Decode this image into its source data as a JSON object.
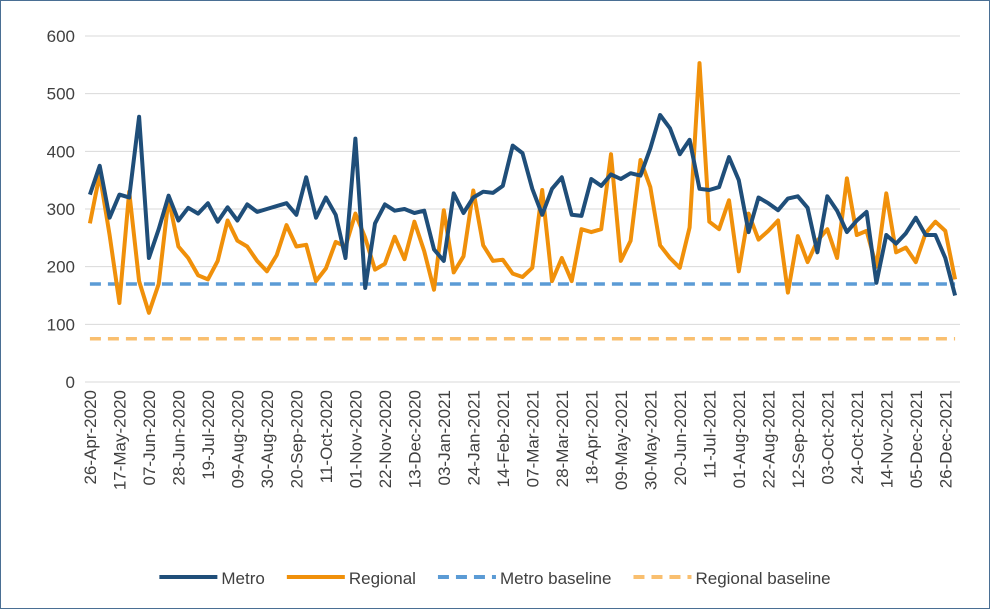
{
  "chart_data": {
    "type": "line",
    "categories": [
      "26-Apr-2020",
      null,
      null,
      "17-May-2020",
      null,
      null,
      "07-Jun-2020",
      null,
      null,
      "28-Jun-2020",
      null,
      null,
      "19-Jul-2020",
      null,
      null,
      "09-Aug-2020",
      null,
      null,
      "30-Aug-2020",
      null,
      null,
      "20-Sep-2020",
      null,
      null,
      "11-Oct-2020",
      null,
      null,
      "01-Nov-2020",
      null,
      null,
      "22-Nov-2020",
      null,
      null,
      "13-Dec-2020",
      null,
      null,
      "03-Jan-2021",
      null,
      null,
      "24-Jan-2021",
      null,
      null,
      "14-Feb-2021",
      null,
      null,
      "07-Mar-2021",
      null,
      null,
      "28-Mar-2021",
      null,
      null,
      "18-Apr-2021",
      null,
      null,
      "09-May-2021",
      null,
      null,
      "30-May-2021",
      null,
      null,
      "20-Jun-2021",
      null,
      null,
      "11-Jul-2021",
      null,
      null,
      "01-Aug-2021",
      null,
      null,
      "22-Aug-2021",
      null,
      null,
      "12-Sep-2021",
      null,
      null,
      "03-Oct-2021",
      null,
      null,
      "24-Oct-2021",
      null,
      null,
      "14-Nov-2021",
      null,
      null,
      "05-Dec-2021",
      null,
      null,
      "26-Dec-2021",
      null
    ],
    "series": [
      {
        "name": "Metro",
        "color": "#1f4e79",
        "style": "solid",
        "values": [
          325,
          375,
          285,
          325,
          320,
          460,
          215,
          265,
          323,
          280,
          302,
          292,
          310,
          278,
          303,
          280,
          308,
          295,
          300,
          305,
          310,
          290,
          355,
          285,
          320,
          290,
          215,
          422,
          163,
          275,
          308,
          297,
          300,
          293,
          297,
          230,
          210,
          327,
          293,
          320,
          330,
          328,
          340,
          410,
          397,
          335,
          290,
          335,
          355,
          290,
          288,
          352,
          340,
          360,
          352,
          362,
          358,
          405,
          463,
          440,
          395,
          420,
          335,
          333,
          338,
          390,
          350,
          260,
          320,
          310,
          298,
          318,
          322,
          302,
          225,
          322,
          297,
          260,
          280,
          295,
          172,
          255,
          240,
          258,
          285,
          255,
          255,
          215,
          150
        ]
      },
      {
        "name": "Regional",
        "color": "#f0900a",
        "style": "solid",
        "values": [
          275,
          360,
          255,
          137,
          330,
          175,
          120,
          170,
          318,
          235,
          215,
          185,
          178,
          210,
          280,
          245,
          235,
          210,
          192,
          220,
          272,
          235,
          238,
          175,
          197,
          243,
          235,
          292,
          250,
          195,
          205,
          252,
          213,
          278,
          227,
          160,
          298,
          190,
          218,
          332,
          237,
          210,
          212,
          188,
          182,
          198,
          333,
          175,
          215,
          175,
          265,
          260,
          265,
          395,
          210,
          245,
          385,
          338,
          237,
          215,
          198,
          268,
          553,
          278,
          265,
          315,
          192,
          292,
          247,
          262,
          280,
          155,
          253,
          208,
          245,
          265,
          215,
          353,
          255,
          262,
          200,
          327,
          225,
          233,
          208,
          258,
          278,
          262,
          178
        ]
      },
      {
        "name": "Metro baseline",
        "color": "#5b9bd5",
        "style": "dashed",
        "value": 170
      },
      {
        "name": "Regional baseline",
        "color": "#f9bf6f",
        "style": "dashed",
        "value": 75
      }
    ],
    "ylim": [
      0,
      600
    ],
    "yticks": [
      0,
      100,
      200,
      300,
      400,
      500,
      600
    ],
    "grid": true,
    "legend": "bottom"
  }
}
